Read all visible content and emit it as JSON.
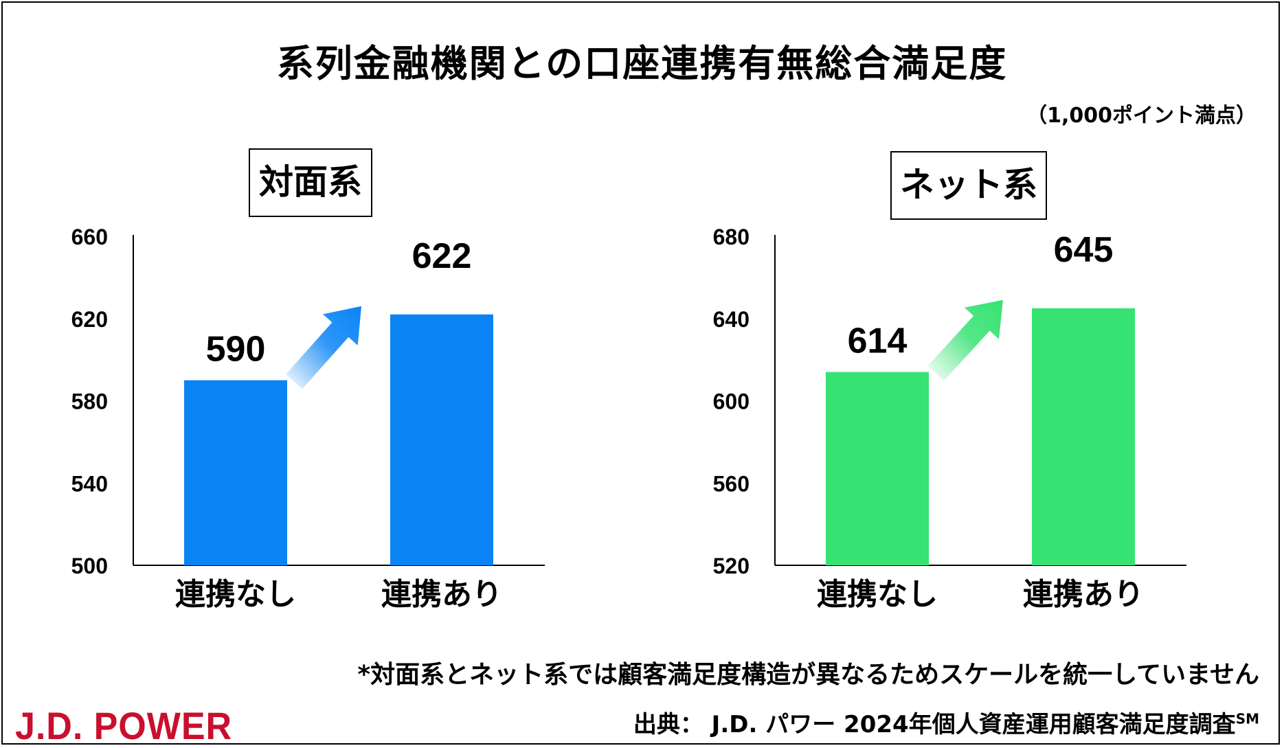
{
  "header": {
    "title": "系列金融機関との口座連携有無総合満足度",
    "unit": "（1,000ポイント満点）"
  },
  "chart_data": [
    {
      "type": "bar",
      "title": "対面系",
      "categories": [
        "連携なし",
        "連携あり"
      ],
      "values": [
        590,
        622
      ],
      "ylim": [
        500,
        660
      ],
      "yticks": [
        "500",
        "540",
        "580",
        "620",
        "660"
      ],
      "color": "#0a84f5",
      "grid": false,
      "arrow": "up-right between bars"
    },
    {
      "type": "bar",
      "title": "ネット系",
      "categories": [
        "連携なし",
        "連携あり"
      ],
      "values": [
        614,
        645
      ],
      "ylim": [
        520,
        680
      ],
      "yticks": [
        "520",
        "560",
        "600",
        "640",
        "680"
      ],
      "color": "#36e272",
      "grid": false,
      "arrow": "up-right between bars"
    }
  ],
  "footer": {
    "footnote": "*対面系とネット系では顧客満足度構造が異なるためスケールを統一していません",
    "source": "出典：  J.D. パワー 2024年個人資産運用顧客満足度調査",
    "source_mark": "SM",
    "logo_text": "J.D. POWER"
  },
  "colors": {
    "logo": "#c8102e"
  }
}
